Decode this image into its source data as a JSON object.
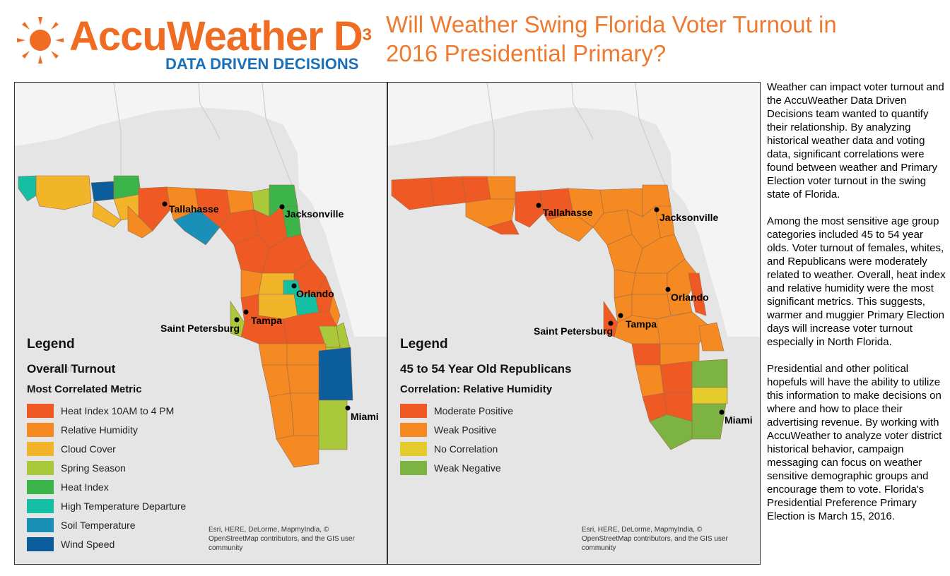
{
  "header": {
    "brand_name": "AccuWeather D",
    "brand_superscript": "3",
    "tagline": "DATA DRIVEN DECISIONS",
    "title": "Will Weather Swing Florida Voter Turnout in 2016 Presidential Primary?"
  },
  "colors": {
    "brand_orange": "#ef6c22",
    "brand_blue": "#1a6fb6",
    "water": "#e5e5e5",
    "land": "#f4f4f4"
  },
  "left_map": {
    "legend_title": "Legend",
    "subtitle": "Overall Turnout",
    "metric_title": "Most Correlated Metric",
    "items": [
      {
        "label": "Heat Index 10AM to 4 PM",
        "color": "#ef5a24"
      },
      {
        "label": "Relative Humidity",
        "color": "#f58a23"
      },
      {
        "label": "Cloud Cover",
        "color": "#f2b52a"
      },
      {
        "label": "Spring Season",
        "color": "#a9c83a"
      },
      {
        "label": "Heat Index",
        "color": "#3bb44a"
      },
      {
        "label": "High Temperature Departure",
        "color": "#14bfa4"
      },
      {
        "label": "Soil Temperature",
        "color": "#1a8fb7"
      },
      {
        "label": "Wind Speed",
        "color": "#0c5d9b"
      }
    ],
    "cities": [
      "Tallahasse",
      "Jacksonville",
      "Orlando",
      "Tampa",
      "Saint Petersburg",
      "Miami"
    ],
    "credit": "Esri, HERE, DeLorme, MapmyIndia, © OpenStreetMap contributors, and the GIS user community"
  },
  "right_map": {
    "legend_title": "Legend",
    "subtitle": "45 to 54 Year Old Republicans",
    "metric_title": "Correlation: Relative Humidity",
    "items": [
      {
        "label": "Moderate Positive",
        "color": "#ef5a24"
      },
      {
        "label": "Weak Positive",
        "color": "#f58a23"
      },
      {
        "label": "No Correlation",
        "color": "#e3cc2c"
      },
      {
        "label": "Weak Negative",
        "color": "#7cb342"
      }
    ],
    "cities": [
      "Tallahasse",
      "Jacksonville",
      "Orlando",
      "Tampa",
      "Saint Petersburg",
      "Miami"
    ],
    "credit": "Esri, HERE, DeLorme, MapmyIndia, © OpenStreetMap contributors, and the GIS user community"
  },
  "article": {
    "paragraphs": [
      "Weather can impact voter turnout and the AccuWeather Data Driven Decisions team wanted to quantify their relationship. By analyzing historical weather data and voting data, significant correlations were found between weather and Primary Election voter turnout in the swing state of Florida.",
      "Among the most sensitive age group categories included 45 to 54 year olds.  Voter turnout of females, whites, and Republicans were moderately related to weather.  Overall, heat index and relative humidity were the most significant metrics.  This suggests, warmer and muggier Primary Election days will increase voter turnout especially in North Florida.",
      "Presidential and other political hopefuls will have the ability to utilize this information to make decisions on where and how to place their advertising revenue.  By working with AccuWeather to analyze voter district historical behavior, campaign messaging can focus on weather sensitive demographic groups and encourage them to vote.  Florida's Presidential Preference Primary Election is March 15, 2016."
    ]
  }
}
